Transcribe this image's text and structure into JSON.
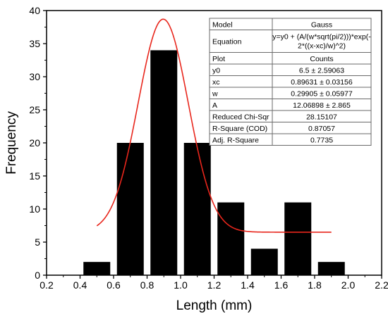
{
  "chart_data": {
    "type": "bar",
    "xlabel": "Length (mm)",
    "ylabel": "Frequency",
    "xlim": [
      0.2,
      2.2
    ],
    "ylim": [
      0,
      40
    ],
    "xticks": [
      "0.2",
      "0.4",
      "0.6",
      "0.8",
      "1.0",
      "1.2",
      "1.4",
      "1.6",
      "1.8",
      "2.0",
      "2.2"
    ],
    "yticks": [
      "0",
      "5",
      "10",
      "15",
      "20",
      "25",
      "30",
      "35",
      "40"
    ],
    "bar_width": 0.16,
    "bars": [
      {
        "x": 0.5,
        "value": 2
      },
      {
        "x": 0.7,
        "value": 20
      },
      {
        "x": 0.9,
        "value": 34
      },
      {
        "x": 1.1,
        "value": 20
      },
      {
        "x": 1.3,
        "value": 11
      },
      {
        "x": 1.5,
        "value": 4
      },
      {
        "x": 1.7,
        "value": 11
      },
      {
        "x": 1.9,
        "value": 2
      }
    ],
    "fit_curve": {
      "model": "Gauss",
      "y0": 6.5,
      "xc": 0.89631,
      "w": 0.29905,
      "A": 12.06898,
      "x_range": [
        0.5,
        1.9
      ],
      "color": "#e8261c"
    },
    "bar_color": "#000000",
    "grid": false,
    "legend": "none",
    "stats_table": {
      "placement": "top-right",
      "rows": [
        [
          "Model",
          "Gauss"
        ],
        [
          "Equation",
          [
            "y=y0 + (A/(w*sqrt(pi/2)))*exp(-",
            "2*((x-xc)/w)^2)"
          ]
        ],
        [
          "Plot",
          "Counts"
        ],
        [
          "y0",
          "6.5 ± 2.59063"
        ],
        [
          "xc",
          "0.89631 ± 0.03156"
        ],
        [
          "w",
          "0.29905 ± 0.05977"
        ],
        [
          "A",
          "12.06898 ± 2.865"
        ],
        [
          "Reduced Chi-Sqr",
          "28.15107"
        ],
        [
          "R-Square (COD)",
          "0.87057"
        ],
        [
          "Adj. R-Square",
          "0.7735"
        ]
      ]
    }
  }
}
